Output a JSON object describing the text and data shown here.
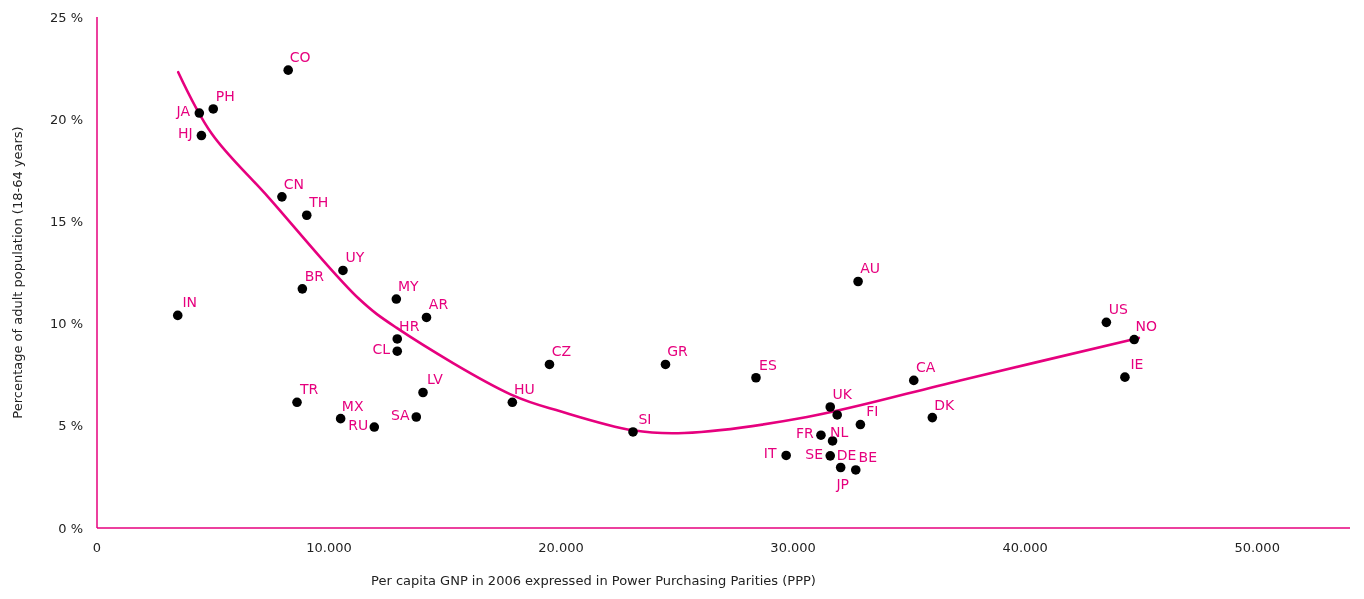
{
  "chart_data": {
    "type": "scatter",
    "xlabel": "Per capita GNP in 2006 expressed in Power Purchasing Parities (PPP)",
    "ylabel": "Percentage of adult population (18-64 years)",
    "xlim": [
      0,
      54000
    ],
    "ylim": [
      0,
      25
    ],
    "xticks": [
      0,
      {
        "value": 10000,
        "label": "10.000"
      },
      {
        "value": 20000,
        "label": "20.000"
      },
      {
        "value": 30000,
        "label": "30.000"
      },
      {
        "value": 40000,
        "label": "40.000"
      },
      {
        "value": 50000,
        "label": "50.000"
      }
    ],
    "yticks": [
      {
        "value": 0,
        "label": "0 %"
      },
      {
        "value": 5,
        "label": "5 %"
      },
      {
        "value": 10,
        "label": "10 %"
      },
      {
        "value": 15,
        "label": "15 %"
      },
      {
        "value": 20,
        "label": "20 %"
      },
      {
        "value": 25,
        "label": "25 %"
      }
    ],
    "marker": "circle",
    "series": [
      {
        "type": "scatter",
        "color": "#000000",
        "x": [
          8240,
          4410,
          5010,
          4500,
          7970,
          9040,
          10600,
          8850,
          12900,
          3480,
          14200,
          12940,
          12940,
          19500,
          8620,
          14050,
          17900,
          10500,
          13760,
          11950,
          32800,
          24500,
          28400,
          35200,
          31600,
          31900,
          23100,
          32900,
          36000,
          31200,
          31700,
          29700,
          31600,
          32050,
          32700,
          43500,
          44700,
          44300
        ],
        "values": [
          22.4,
          20.3,
          20.5,
          19.2,
          16.2,
          15.3,
          12.6,
          11.7,
          11.2,
          10.4,
          10.3,
          9.25,
          8.65,
          8.0,
          6.15,
          6.63,
          6.15,
          5.35,
          5.43,
          4.94,
          12.06,
          8.0,
          7.35,
          7.22,
          5.92,
          5.53,
          4.7,
          5.06,
          5.4,
          4.54,
          4.26,
          3.55,
          3.53,
          2.96,
          2.84,
          10.06,
          9.22,
          7.38
        ]
      },
      {
        "type": "line",
        "color": "#e6007e",
        "marker": "none",
        "x": [
          3500,
          4940,
          7370,
          11300,
          12900,
          17900,
          20000,
          23100,
          25300,
          30600,
          37200,
          44900
        ],
        "values": [
          22.3,
          19.3,
          16.2,
          11.2,
          9.8,
          6.5,
          5.7,
          4.78,
          4.65,
          5.43,
          7.22,
          9.3
        ]
      }
    ],
    "annotations": [
      {
        "text": "CO",
        "x": 8240,
        "y": 22.4
      },
      {
        "text": "JA",
        "x": 4410,
        "y": 20.3
      },
      {
        "text": "PH",
        "x": 5010,
        "y": 20.5
      },
      {
        "text": "HJ",
        "x": 4500,
        "y": 19.2
      },
      {
        "text": "CN",
        "x": 7970,
        "y": 16.2
      },
      {
        "text": "TH",
        "x": 9040,
        "y": 15.3
      },
      {
        "text": "UY",
        "x": 10600,
        "y": 12.6
      },
      {
        "text": "BR",
        "x": 8850,
        "y": 11.7
      },
      {
        "text": "MY",
        "x": 12900,
        "y": 11.2
      },
      {
        "text": "IN",
        "x": 3480,
        "y": 10.4
      },
      {
        "text": "AR",
        "x": 14200,
        "y": 10.3
      },
      {
        "text": "HR",
        "x": 12940,
        "y": 9.25
      },
      {
        "text": "CL",
        "x": 12940,
        "y": 8.65
      },
      {
        "text": "CZ",
        "x": 19500,
        "y": 8.0
      },
      {
        "text": "TR",
        "x": 8620,
        "y": 6.15
      },
      {
        "text": "LV",
        "x": 14050,
        "y": 6.63
      },
      {
        "text": "HU",
        "x": 17900,
        "y": 6.15
      },
      {
        "text": "MX",
        "x": 10500,
        "y": 5.35
      },
      {
        "text": "SA",
        "x": 13760,
        "y": 5.43
      },
      {
        "text": "RU",
        "x": 11950,
        "y": 4.94
      },
      {
        "text": "AU",
        "x": 32800,
        "y": 12.06
      },
      {
        "text": "GR",
        "x": 24500,
        "y": 8.0
      },
      {
        "text": "ES",
        "x": 28400,
        "y": 7.35
      },
      {
        "text": "CA",
        "x": 35200,
        "y": 7.22
      },
      {
        "text": "UK",
        "x": 31600,
        "y": 5.92
      },
      {
        "text": "NL",
        "x": 31900,
        "y": 5.53
      },
      {
        "text": "SI",
        "x": 23100,
        "y": 4.7
      },
      {
        "text": "FI",
        "x": 32900,
        "y": 5.06
      },
      {
        "text": "DK",
        "x": 36000,
        "y": 5.4
      },
      {
        "text": "FR",
        "x": 31200,
        "y": 4.54
      },
      {
        "text": "DE",
        "x": 31700,
        "y": 4.26
      },
      {
        "text": "IT",
        "x": 29700,
        "y": 3.55
      },
      {
        "text": "SE",
        "x": 31600,
        "y": 3.53
      },
      {
        "text": "JP",
        "x": 32050,
        "y": 2.96
      },
      {
        "text": "BE",
        "x": 32700,
        "y": 2.84
      },
      {
        "text": "US",
        "x": 43500,
        "y": 10.06
      },
      {
        "text": "NO",
        "x": 44700,
        "y": 9.22
      },
      {
        "text": "IE",
        "x": 44300,
        "y": 7.38
      }
    ]
  }
}
